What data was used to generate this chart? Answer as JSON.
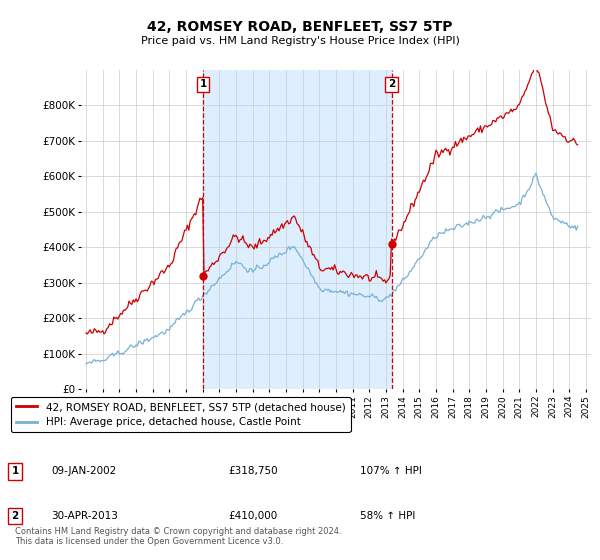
{
  "title": "42, ROMSEY ROAD, BENFLEET, SS7 5TP",
  "subtitle": "Price paid vs. HM Land Registry's House Price Index (HPI)",
  "legend_line1": "42, ROMSEY ROAD, BENFLEET, SS7 5TP (detached house)",
  "legend_line2": "HPI: Average price, detached house, Castle Point",
  "annotation1_date": "09-JAN-2002",
  "annotation1_price": "£318,750",
  "annotation1_hpi": "107% ↑ HPI",
  "annotation2_date": "30-APR-2013",
  "annotation2_price": "£410,000",
  "annotation2_hpi": "58% ↑ HPI",
  "footer": "Contains HM Land Registry data © Crown copyright and database right 2024.\nThis data is licensed under the Open Government Licence v3.0.",
  "red_color": "#cc0000",
  "blue_color": "#7ab0d4",
  "shade_color": "#ddeeff",
  "background_color": "#ffffff",
  "grid_color": "#cccccc",
  "ylim": [
    0,
    900000
  ],
  "yticks": [
    0,
    100000,
    200000,
    300000,
    400000,
    500000,
    600000,
    700000,
    800000
  ],
  "ytick_labels": [
    "£0",
    "£100K",
    "£200K",
    "£300K",
    "£400K",
    "£500K",
    "£600K",
    "£700K",
    "£800K"
  ],
  "sale1_x": 2002.03,
  "sale1_y": 318750,
  "sale2_x": 2013.33,
  "sale2_y": 410000,
  "xlim_left": 1994.7,
  "xlim_right": 2025.3
}
